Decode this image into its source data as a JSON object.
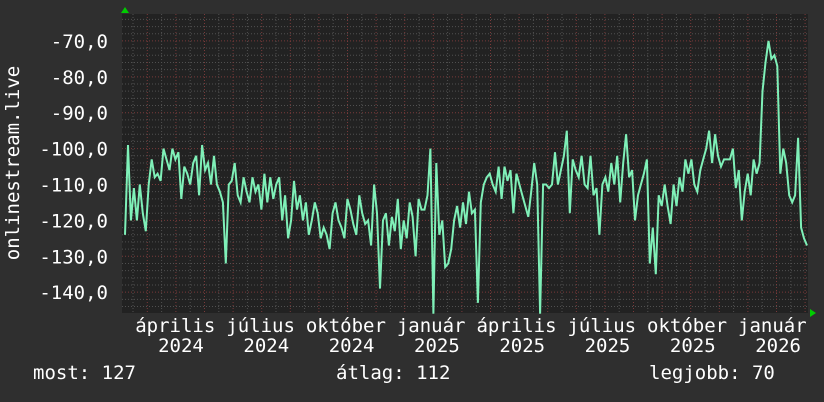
{
  "chart_data": {
    "type": "line",
    "ylabel": "onlinestream.live",
    "ylim": [
      -145.8,
      -62.5
    ],
    "y_ticks": [
      "-70,0",
      "-80,0",
      "-90,0",
      "-100,0",
      "-110,0",
      "-120,0",
      "-130,0",
      "-140,0"
    ],
    "y_tick_values": [
      -70,
      -80,
      -90,
      -100,
      -110,
      -120,
      -130,
      -140
    ],
    "x_ticks": [
      "április 2024",
      "július 2024",
      "október 2024",
      "január 2025",
      "április 2025",
      "július 2025",
      "október 2025",
      "január 2026"
    ],
    "grid": true,
    "series": [
      {
        "color": "#7ff0b8",
        "values": [
          -124,
          -99,
          -120,
          -111,
          -120,
          -110,
          -118,
          -123,
          -110,
          -103,
          -108,
          -107,
          -109,
          -100,
          -103,
          -106,
          -100,
          -103,
          -101,
          -114,
          -105,
          -107,
          -110,
          -104,
          -102,
          -113,
          -99,
          -106,
          -104,
          -110,
          -102,
          -110,
          -112,
          -115,
          -132,
          -110,
          -109,
          -104,
          -113,
          -115,
          -108,
          -112,
          -115,
          -108,
          -112,
          -110,
          -117,
          -107,
          -115,
          -108,
          -114,
          -110,
          -108,
          -120,
          -113,
          -125,
          -120,
          -109,
          -117,
          -113,
          -120,
          -115,
          -124,
          -120,
          -115,
          -118,
          -125,
          -122,
          -124,
          -128,
          -118,
          -115,
          -120,
          -122,
          -125,
          -114,
          -117,
          -121,
          -124,
          -113,
          -118,
          -121,
          -120,
          -127,
          -110,
          -118,
          -139,
          -120,
          -118,
          -127,
          -119,
          -123,
          -114,
          -128,
          -120,
          -125,
          -115,
          -119,
          -130,
          -114,
          -117,
          -117,
          -113,
          -100,
          -146,
          -104,
          -124,
          -120,
          -133,
          -132,
          -128,
          -120,
          -116,
          -122,
          -115,
          -121,
          -112,
          -118,
          -117,
          -143,
          -115,
          -110,
          -108,
          -107,
          -110,
          -112,
          -105,
          -114,
          -105,
          -109,
          -106,
          -118,
          -107,
          -110,
          -113,
          -116,
          -119,
          -112,
          -104,
          -110,
          -146,
          -110,
          -110,
          -111,
          -110,
          -101,
          -110,
          -106,
          -102,
          -95,
          -118,
          -103,
          -106,
          -108,
          -102,
          -110,
          -111,
          -102,
          -113,
          -111,
          -124,
          -110,
          -108,
          -112,
          -104,
          -110,
          -102,
          -115,
          -104,
          -96,
          -108,
          -106,
          -120,
          -113,
          -110,
          -107,
          -103,
          -132,
          -122,
          -135,
          -113,
          -116,
          -110,
          -116,
          -121,
          -110,
          -116,
          -108,
          -112,
          -103,
          -107,
          -103,
          -110,
          -112,
          -106,
          -103,
          -100,
          -95,
          -104,
          -96,
          -102,
          -105,
          -103,
          -103,
          -103,
          -100,
          -111,
          -106,
          -120,
          -112,
          -107,
          -113,
          -103,
          -107,
          -104,
          -84,
          -76,
          -70,
          -75,
          -74,
          -77,
          -107,
          -100,
          -104,
          -113,
          -115,
          -113,
          -97,
          -122,
          -125,
          -127
        ]
      }
    ]
  },
  "legend": {
    "current": "most: 127",
    "average": "átlag: 112",
    "best": "legjobb: 70"
  },
  "colors": {
    "background": "#2f2f2f",
    "plot": "#222222",
    "line": "#7ff0b8",
    "major_grid": "#7a3a3a",
    "minor_grid": "#555555",
    "arrow": "#00cc00"
  }
}
